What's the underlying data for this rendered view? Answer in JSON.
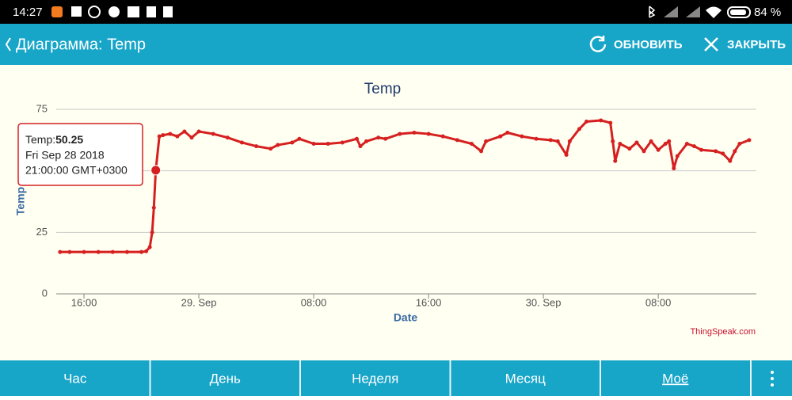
{
  "status_bar": {
    "time": "14:27",
    "battery": "84 %"
  },
  "app_bar": {
    "title": "Диаграмма: Temp",
    "refresh": "ОБНОВИТЬ",
    "close": "ЗАКРЫТЬ"
  },
  "chart_data": {
    "type": "line",
    "title": "Temp",
    "x_label": "Date",
    "y_label": "Temp",
    "credit": "ThingSpeak.com",
    "x": [
      "2018-09-28T14:20",
      "2018-09-28T15:00",
      "2018-09-28T16:00",
      "2018-09-28T17:00",
      "2018-09-28T18:00",
      "2018-09-28T19:00",
      "2018-09-28T20:00",
      "2018-09-28T20:20",
      "2018-09-28T20:35",
      "2018-09-28T20:45",
      "2018-09-28T20:52",
      "2018-09-28T21:00",
      "2018-09-28T21:15",
      "2018-09-28T21:30",
      "2018-09-28T22:00",
      "2018-09-28T22:30",
      "2018-09-28T23:00",
      "2018-09-28T23:30",
      "2018-09-29T00:00",
      "2018-09-29T01:00",
      "2018-09-29T02:00",
      "2018-09-29T03:00",
      "2018-09-29T04:00",
      "2018-09-29T05:00",
      "2018-09-29T05:30",
      "2018-09-29T06:30",
      "2018-09-29T07:00",
      "2018-09-29T08:00",
      "2018-09-29T09:00",
      "2018-09-29T10:00",
      "2018-09-29T11:00",
      "2018-09-29T11:15",
      "2018-09-29T11:40",
      "2018-09-29T12:30",
      "2018-09-29T13:00",
      "2018-09-29T14:00",
      "2018-09-29T15:00",
      "2018-09-29T16:00",
      "2018-09-29T17:00",
      "2018-09-29T18:00",
      "2018-09-29T19:00",
      "2018-09-29T19:40",
      "2018-09-29T20:00",
      "2018-09-29T21:00",
      "2018-09-29T21:30",
      "2018-09-29T22:30",
      "2018-09-29T23:30",
      "2018-09-30T00:30",
      "2018-09-30T01:00",
      "2018-09-30T01:36",
      "2018-09-30T01:50",
      "2018-09-30T02:30",
      "2018-09-30T03:00",
      "2018-09-30T04:00",
      "2018-09-30T04:40",
      "2018-09-30T04:50",
      "2018-09-30T05:00",
      "2018-09-30T05:20",
      "2018-09-30T06:00",
      "2018-09-30T06:30",
      "2018-09-30T07:00",
      "2018-09-30T07:30",
      "2018-09-30T08:00",
      "2018-09-30T08:30",
      "2018-09-30T08:45",
      "2018-09-30T09:05",
      "2018-09-30T09:20",
      "2018-09-30T10:00",
      "2018-09-30T10:30",
      "2018-09-30T11:00",
      "2018-09-30T12:00",
      "2018-09-30T12:30",
      "2018-09-30T13:00",
      "2018-09-30T13:20",
      "2018-09-30T13:40",
      "2018-09-30T14:20"
    ],
    "series": [
      {
        "name": "Temp",
        "color": "#d62020",
        "values": [
          17,
          17,
          17,
          17,
          17,
          17,
          17,
          17.3,
          19,
          25,
          35,
          50.25,
          64,
          64.5,
          65,
          64,
          66,
          63.5,
          66,
          65,
          63.5,
          61.5,
          60,
          59,
          60.5,
          61.5,
          63,
          61,
          61,
          61.5,
          63,
          60,
          62,
          63.5,
          63,
          65,
          65.5,
          65,
          64,
          62.5,
          61,
          58,
          62,
          64,
          65.5,
          64,
          63,
          62.5,
          62,
          56.5,
          62,
          67,
          70,
          70.5,
          69.5,
          62,
          54,
          61,
          59,
          61.5,
          58,
          62,
          58.5,
          61,
          62,
          51,
          56,
          61,
          60,
          58.5,
          58,
          57,
          54,
          58,
          61,
          62.5
        ]
      }
    ],
    "xlim": [
      "2018-09-28T14:04",
      "2018-09-30T14:50"
    ],
    "xticks": [
      {
        "value": "2018-09-28T16:00",
        "label": "16:00"
      },
      {
        "value": "2018-09-29T00:00",
        "label": "29. Sep"
      },
      {
        "value": "2018-09-29T08:00",
        "label": "08:00"
      },
      {
        "value": "2018-09-29T16:00",
        "label": "16:00"
      },
      {
        "value": "2018-09-30T00:00",
        "label": "30. Sep"
      },
      {
        "value": "2018-09-30T08:00",
        "label": "08:00"
      }
    ],
    "ylim": [
      0,
      75
    ],
    "yticks": [
      0,
      25,
      50,
      75
    ],
    "grid": true,
    "tooltip": {
      "point": 11,
      "label": "Temp:",
      "date": "Fri Sep 28 2018",
      "time": "21:00:00 GMT+0300"
    }
  },
  "tabs": [
    "Час",
    "День",
    "Неделя",
    "Месяц",
    "Моё"
  ]
}
